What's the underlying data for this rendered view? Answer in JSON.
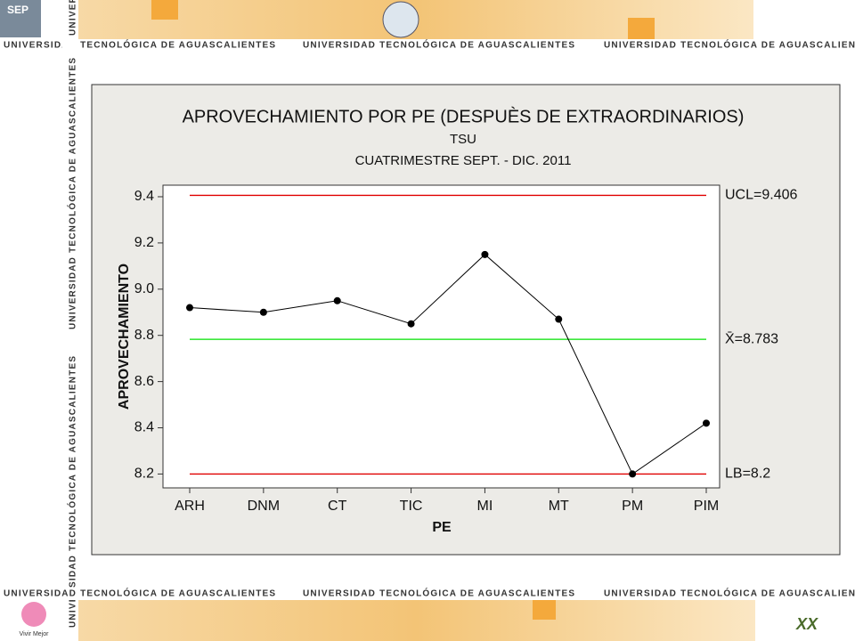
{
  "banner": "UNIVERSIDAD TECNOLÓGICA DE AGUASCALIENTES",
  "logos": {
    "sep": "SEP",
    "vivir": "Vivir Mejor",
    "aniversario": "XX"
  },
  "chart_data": {
    "type": "line",
    "title": "APROVECHAMIENTO POR PE (DESPUÈS DE EXTRAORDINARIOS)",
    "subtitle": [
      "TSU",
      "CUATRIMESTRE SEPT. - DIC. 2011"
    ],
    "x_label": "PE",
    "y_label": "APROVECHAMIENTO",
    "categories": [
      "ARH",
      "DNM",
      "CT",
      "TIC",
      "MI",
      "MT",
      "PM",
      "PIM"
    ],
    "series": [
      {
        "name": "APROVECHAMIENTO",
        "color": "#000000",
        "values": [
          8.92,
          8.9,
          8.95,
          8.85,
          9.15,
          8.87,
          8.2,
          8.42
        ]
      }
    ],
    "ylim": [
      8.14,
      9.45
    ],
    "yticks": [
      8.2,
      8.4,
      8.6,
      8.8,
      {
        "value": 9,
        "label": "9.0"
      },
      9.2,
      9.4
    ],
    "reference_lines": [
      {
        "label": "UCL=9.406",
        "value": 9.406,
        "color": "#e00000"
      },
      {
        "label": "X̄=8.783",
        "value": 8.783,
        "color": "#00e000"
      },
      {
        "label": "LB=8.2",
        "value": 8.2,
        "color": "#e00000"
      }
    ]
  }
}
